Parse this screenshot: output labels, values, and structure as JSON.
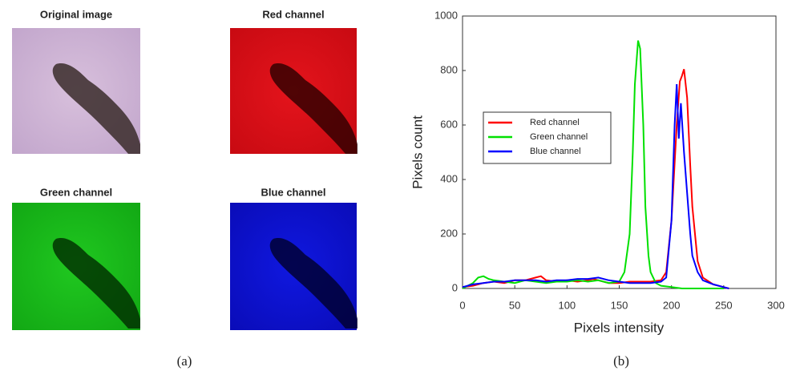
{
  "panels": [
    {
      "title": "Original image"
    },
    {
      "title": "Red channel"
    },
    {
      "title": "Green channel"
    },
    {
      "title": "Blue channel"
    }
  ],
  "captions": [
    "(a)",
    "(b)"
  ],
  "chart_data": {
    "type": "line",
    "x_label": "Pixels intensity",
    "y_label": "Pixels count",
    "xlim": [
      0,
      300
    ],
    "xticks": [
      0,
      50,
      100,
      150,
      200,
      250,
      300
    ],
    "ylim": [
      0,
      1000
    ],
    "yticks": [
      0,
      200,
      400,
      600,
      800,
      1000
    ],
    "legend": "left",
    "series": [
      {
        "name": "Red channel",
        "color": "#ff0000",
        "x": [
          0,
          10,
          20,
          30,
          40,
          50,
          60,
          70,
          75,
          80,
          90,
          100,
          110,
          120,
          125,
          130,
          140,
          150,
          160,
          170,
          180,
          190,
          195,
          200,
          205,
          208,
          210,
          212,
          215,
          218,
          220,
          225,
          230,
          240,
          250,
          255
        ],
        "values": [
          5,
          10,
          20,
          25,
          20,
          30,
          30,
          40,
          45,
          30,
          25,
          30,
          25,
          30,
          35,
          30,
          20,
          20,
          25,
          25,
          25,
          30,
          60,
          250,
          600,
          760,
          780,
          805,
          700,
          450,
          300,
          100,
          40,
          15,
          5,
          0
        ]
      },
      {
        "name": "Green channel",
        "color": "#00e000",
        "x": [
          0,
          5,
          10,
          15,
          20,
          25,
          30,
          40,
          50,
          60,
          70,
          80,
          90,
          100,
          110,
          120,
          130,
          140,
          150,
          155,
          160,
          163,
          165,
          168,
          170,
          173,
          175,
          178,
          180,
          185,
          190,
          200,
          210,
          220,
          250
        ],
        "values": [
          0,
          10,
          20,
          40,
          45,
          35,
          30,
          25,
          20,
          30,
          25,
          20,
          25,
          25,
          30,
          25,
          30,
          20,
          25,
          60,
          200,
          500,
          750,
          910,
          880,
          600,
          300,
          120,
          60,
          20,
          10,
          5,
          0,
          0,
          0
        ]
      },
      {
        "name": "Blue channel",
        "color": "#0000ff",
        "x": [
          0,
          10,
          20,
          30,
          40,
          50,
          60,
          70,
          80,
          90,
          100,
          110,
          120,
          130,
          140,
          150,
          160,
          170,
          180,
          190,
          195,
          200,
          203,
          205,
          207,
          209,
          212,
          215,
          218,
          220,
          225,
          230,
          240,
          250,
          255
        ],
        "values": [
          5,
          15,
          20,
          25,
          25,
          30,
          30,
          30,
          25,
          30,
          30,
          35,
          35,
          40,
          30,
          25,
          20,
          20,
          20,
          25,
          40,
          250,
          600,
          750,
          550,
          680,
          500,
          350,
          200,
          120,
          60,
          30,
          15,
          5,
          0
        ]
      }
    ]
  }
}
